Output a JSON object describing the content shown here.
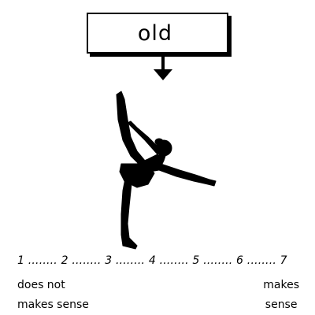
{
  "prompt": {
    "word": "old"
  },
  "image": {
    "icon": "ballet-dancer-silhouette-icon"
  },
  "scale": {
    "text": "1 ........ 2 ........ 3 ........ 4 ........ 5 ........ 6 ........ 7",
    "low_label_line1": "does not",
    "low_label_line2": "makes sense",
    "high_label_line1": "makes",
    "high_label_line2": "sense"
  },
  "colors": {
    "ink": "#000000",
    "background": "#ffffff"
  }
}
